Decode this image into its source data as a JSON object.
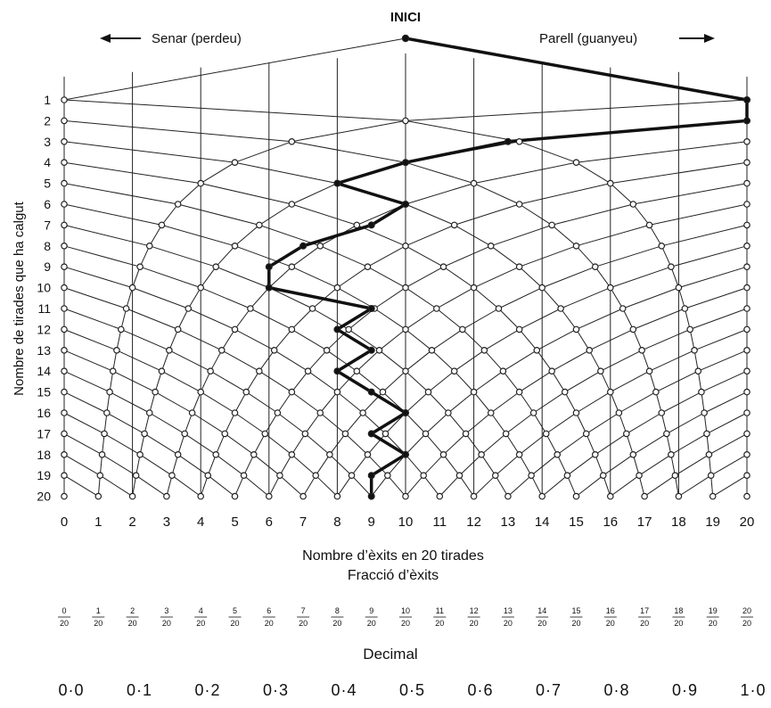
{
  "header": {
    "start_label": "INICI",
    "left_label": "Senar (perdeu)",
    "right_label": "Parell (guanyeu)",
    "left_arrow_icon": "arrow-left-icon",
    "right_arrow_icon": "arrow-right-icon"
  },
  "axes": {
    "y_label": "Nombre de tirades que ha calgut",
    "y_ticks": [
      "1",
      "2",
      "3",
      "4",
      "5",
      "6",
      "7",
      "8",
      "9",
      "10",
      "11",
      "12",
      "13",
      "14",
      "15",
      "16",
      "17",
      "18",
      "19",
      "20"
    ],
    "x_label": "Nombre d’èxits en 20 tirades",
    "x_ticks": [
      "0",
      "1",
      "2",
      "3",
      "4",
      "5",
      "6",
      "7",
      "8",
      "9",
      "10",
      "11",
      "12",
      "13",
      "14",
      "15",
      "16",
      "17",
      "18",
      "19",
      "20"
    ]
  },
  "fraction_section": {
    "title": "Fracció d’èxits",
    "numerators": [
      "0",
      "1",
      "2",
      "3",
      "4",
      "5",
      "6",
      "7",
      "8",
      "9",
      "10",
      "11",
      "12",
      "13",
      "14",
      "15",
      "16",
      "17",
      "18",
      "19",
      "20"
    ],
    "denominator": "20"
  },
  "decimal_section": {
    "title": "Decimal",
    "values": [
      "0·0",
      "0·1",
      "0·2",
      "0·3",
      "0·4",
      "0·5",
      "0·6",
      "0·7",
      "0·8",
      "0·9",
      "1·0"
    ]
  },
  "walk": {
    "description_path_successes_by_row": [
      20,
      20,
      13,
      10,
      8,
      10,
      9,
      7,
      6,
      6,
      9,
      8,
      9,
      8,
      9,
      10,
      9,
      10,
      9,
      9
    ]
  },
  "colors": {
    "ink": "#111111",
    "paper": "#ffffff"
  }
}
